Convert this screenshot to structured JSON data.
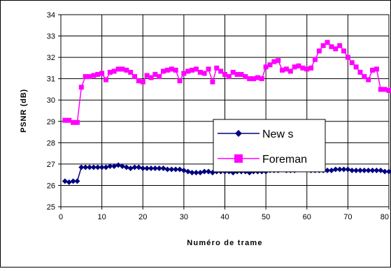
{
  "chart_data": {
    "type": "line",
    "xlabel": "Numéro de trame",
    "ylabel": "PSNR (dB)",
    "xlim": [
      0,
      80
    ],
    "ylim": [
      25,
      34
    ],
    "x_ticks": [
      "0",
      "10",
      "20",
      "30",
      "40",
      "50",
      "60",
      "70",
      "80"
    ],
    "y_ticks": [
      "25",
      "26",
      "27",
      "28",
      "29",
      "30",
      "31",
      "32",
      "33",
      "34"
    ],
    "grid": true,
    "legend_position": "center-right",
    "x": [
      1,
      2,
      3,
      4,
      5,
      6,
      7,
      8,
      9,
      10,
      11,
      12,
      13,
      14,
      15,
      16,
      17,
      18,
      19,
      20,
      21,
      22,
      23,
      24,
      25,
      26,
      27,
      28,
      29,
      30,
      31,
      32,
      33,
      34,
      35,
      36,
      37,
      38,
      39,
      40,
      41,
      42,
      43,
      44,
      45,
      46,
      47,
      48,
      49,
      50,
      51,
      52,
      53,
      54,
      55,
      56,
      57,
      58,
      59,
      60,
      61,
      62,
      63,
      64,
      65,
      66,
      67,
      68,
      69,
      70,
      71,
      72,
      73,
      74,
      75,
      76,
      77,
      78,
      79,
      80
    ],
    "series": [
      {
        "name": "New s",
        "color": "#000080",
        "marker": "diamond",
        "values": [
          26.2,
          26.15,
          26.2,
          26.2,
          26.85,
          26.85,
          26.85,
          26.85,
          26.85,
          26.85,
          26.85,
          26.9,
          26.9,
          26.95,
          26.9,
          26.85,
          26.8,
          26.85,
          26.85,
          26.8,
          26.8,
          26.8,
          26.8,
          26.8,
          26.8,
          26.75,
          26.75,
          26.75,
          26.75,
          26.7,
          26.65,
          26.6,
          26.6,
          26.6,
          26.65,
          26.65,
          26.6,
          26.65,
          26.65,
          26.65,
          26.65,
          26.6,
          26.65,
          26.65,
          26.65,
          26.6,
          26.65,
          26.65,
          26.65,
          26.65,
          26.7,
          26.7,
          26.7,
          26.75,
          26.7,
          26.7,
          26.7,
          26.75,
          26.75,
          26.75,
          26.7,
          26.7,
          26.7,
          26.7,
          26.7,
          26.7,
          26.75,
          26.75,
          26.75,
          26.75,
          26.7,
          26.7,
          26.7,
          26.7,
          26.7,
          26.7,
          26.7,
          26.7,
          26.65,
          26.65
        ]
      },
      {
        "name": "Foreman",
        "color": "#FF00FF",
        "marker": "square",
        "values": [
          29.05,
          29.05,
          28.95,
          28.95,
          30.6,
          31.1,
          31.1,
          31.15,
          31.2,
          31.25,
          30.95,
          31.3,
          31.35,
          31.45,
          31.45,
          31.4,
          31.3,
          31.1,
          30.9,
          30.85,
          31.15,
          31.05,
          31.2,
          31.1,
          31.35,
          31.4,
          31.45,
          31.4,
          30.9,
          31.25,
          31.35,
          31.4,
          31.45,
          31.3,
          31.25,
          31.45,
          30.85,
          31.5,
          31.35,
          31.2,
          31.1,
          31.3,
          31.2,
          31.2,
          31.1,
          31.0,
          31.0,
          31.05,
          31.0,
          31.55,
          31.65,
          31.8,
          31.85,
          31.4,
          31.45,
          31.35,
          31.55,
          31.6,
          31.5,
          31.45,
          31.5,
          31.9,
          32.3,
          32.55,
          32.7,
          32.5,
          32.4,
          32.55,
          32.3,
          32.0,
          31.75,
          31.55,
          31.3,
          31.1,
          30.95,
          31.4,
          31.45,
          30.5,
          30.5,
          30.45
        ]
      }
    ]
  }
}
